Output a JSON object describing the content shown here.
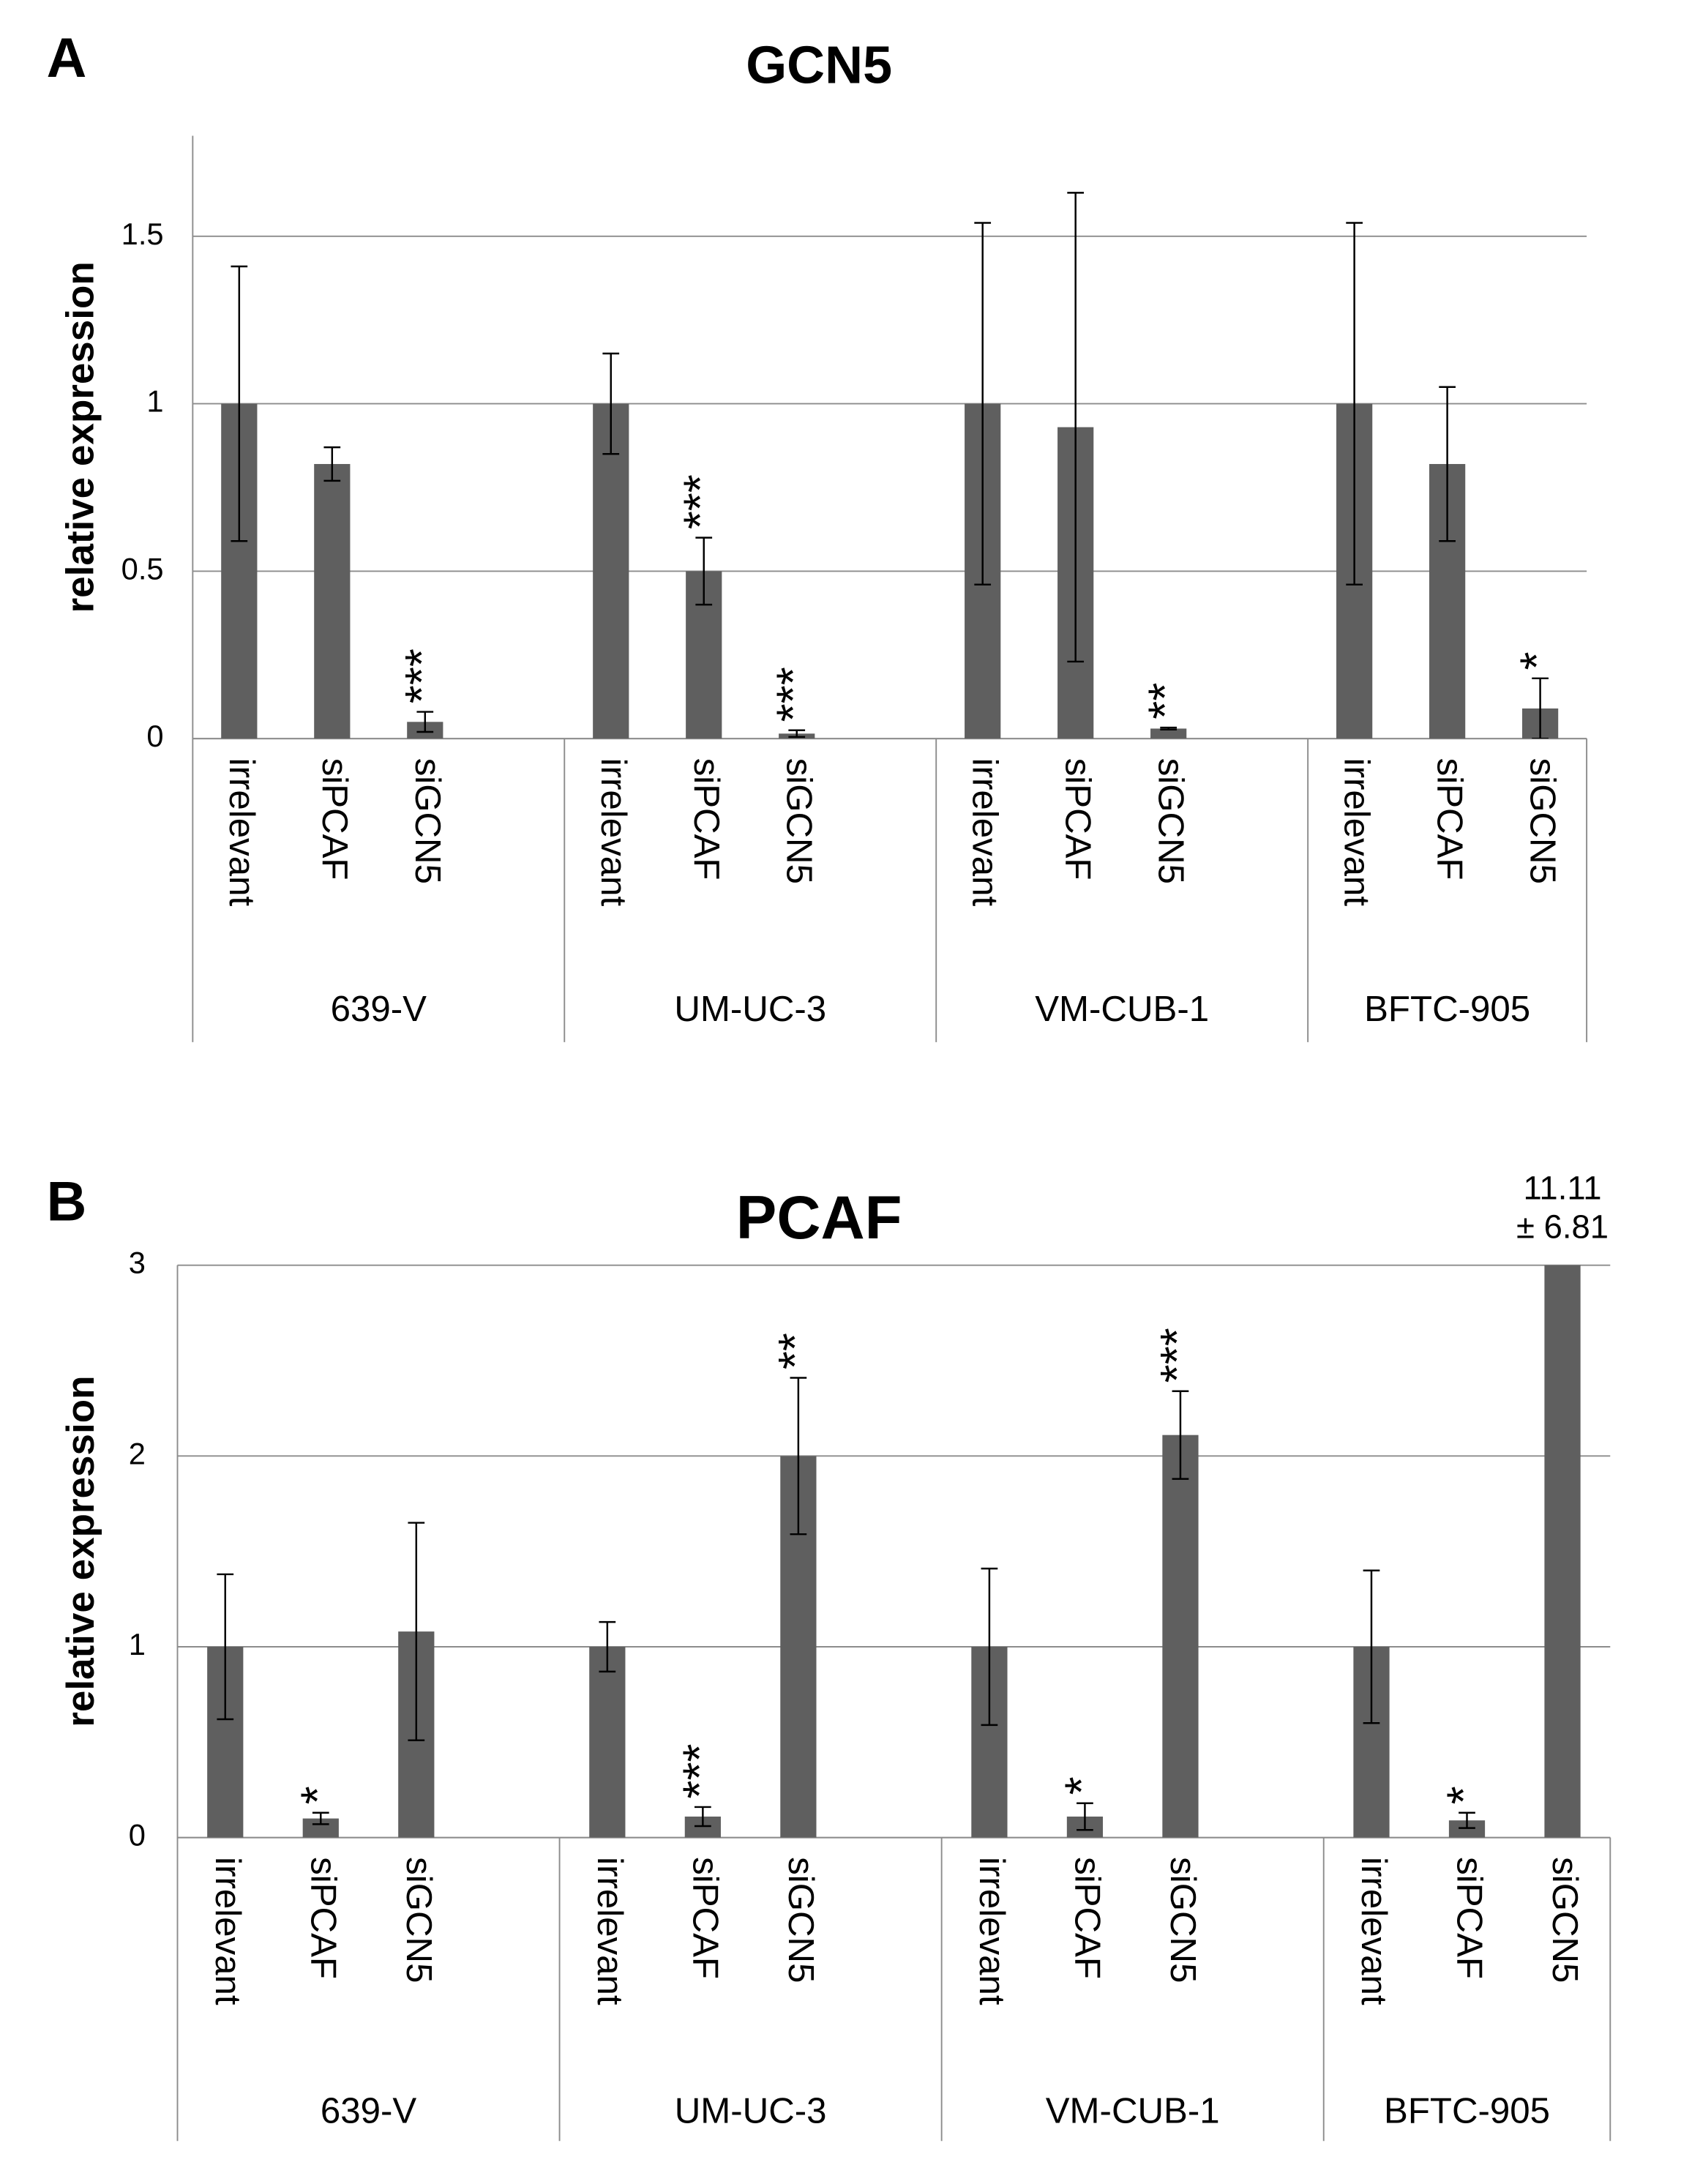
{
  "chart_data": [
    {
      "type": "bar",
      "panel": "A",
      "title": "GCN5",
      "y_label": "relative expression",
      "groups": [
        "639-V",
        "UM-UC-3",
        "VM-CUB-1",
        "BFTC-905"
      ],
      "categories": [
        "irrelevant",
        "siPCAF",
        "siGCN5",
        "irrelevant",
        "siPCAF",
        "siGCN5",
        "irrelevant",
        "siPCAF",
        "siGCN5",
        "irrelevant",
        "siPCAF",
        "siGCN5"
      ],
      "values": [
        1.0,
        0.82,
        0.05,
        1.0,
        0.5,
        0.015,
        1.0,
        0.93,
        0.03,
        1.0,
        0.82,
        0.09
      ],
      "errors": [
        0.41,
        0.05,
        0.03,
        0.15,
        0.1,
        0.01,
        0.54,
        0.7,
        0.003,
        0.54,
        0.23,
        0.09
      ],
      "annotations": [
        null,
        null,
        "***",
        null,
        "***",
        "***",
        null,
        null,
        "**",
        null,
        null,
        "*"
      ],
      "color": "#5f5f5f",
      "ylim": [
        0,
        1.8
      ],
      "yticks": [
        0,
        0.5,
        1,
        1.5
      ],
      "grid": true
    },
    {
      "type": "bar",
      "panel": "B",
      "title": "PCAF",
      "y_label": "relative expression",
      "groups": [
        "639-V",
        "UM-UC-3",
        "VM-CUB-1",
        "BFTC-905"
      ],
      "categories": [
        "irrelevant",
        "siPCAF",
        "siGCN5",
        "irrelevant",
        "siPCAF",
        "siGCN5",
        "irrelevant",
        "siPCAF",
        "siGCN5",
        "irrelevant",
        "siPCAF",
        "siGCN5"
      ],
      "values": [
        1.0,
        0.1,
        1.08,
        1.0,
        0.11,
        2.0,
        1.0,
        0.11,
        2.11,
        1.0,
        0.09,
        11.11
      ],
      "errors": [
        0.38,
        0.03,
        0.57,
        0.13,
        0.05,
        0.41,
        0.41,
        0.07,
        0.23,
        0.4,
        0.04,
        6.81
      ],
      "value_labels": [
        null,
        null,
        null,
        null,
        null,
        null,
        null,
        null,
        null,
        null,
        null,
        "11.11"
      ],
      "error_labels": [
        null,
        null,
        null,
        null,
        null,
        null,
        null,
        null,
        null,
        null,
        null,
        "± 6.81"
      ],
      "annotations": [
        null,
        "*",
        null,
        null,
        "***",
        "**",
        null,
        "*",
        "***",
        null,
        "*",
        null
      ],
      "color": "#5f5f5f",
      "ylim": [
        0,
        3
      ],
      "yticks": [
        0,
        1,
        2,
        3
      ],
      "grid": true
    }
  ]
}
